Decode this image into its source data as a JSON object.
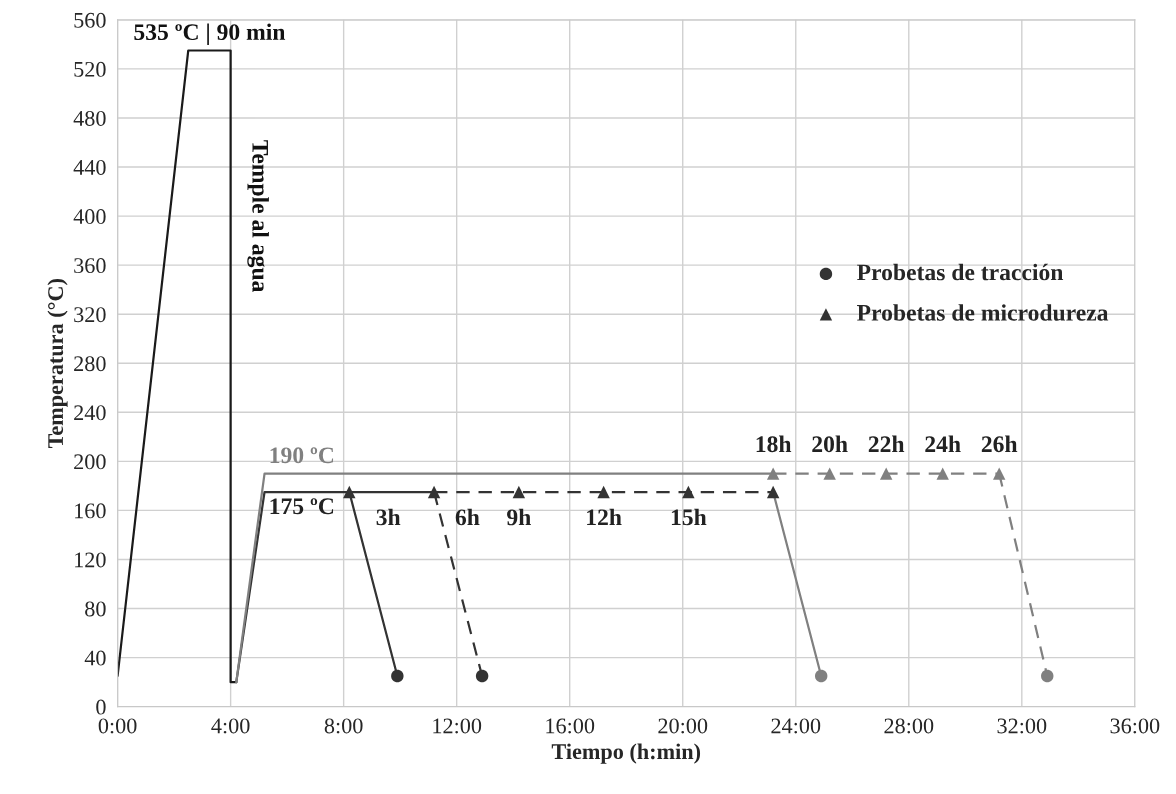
{
  "chart_data": {
    "type": "line",
    "xlabel": "Tiempo (h:min)",
    "ylabel": "Temperatura (°C)",
    "xlim": [
      0,
      36
    ],
    "ylim": [
      0,
      560
    ],
    "xticks": [
      {
        "value": 0,
        "label": "0:00"
      },
      {
        "value": 4,
        "label": "4:00"
      },
      {
        "value": 8,
        "label": "8:00"
      },
      {
        "value": 12,
        "label": "12:00"
      },
      {
        "value": 16,
        "label": "16:00"
      },
      {
        "value": 20,
        "label": "20:00"
      },
      {
        "value": 24,
        "label": "24:00"
      },
      {
        "value": 28,
        "label": "28:00"
      },
      {
        "value": 32,
        "label": "32:00"
      },
      {
        "value": 36,
        "label": "36:00"
      }
    ],
    "yticks": [
      0,
      40,
      80,
      120,
      160,
      200,
      240,
      280,
      320,
      360,
      400,
      440,
      480,
      520,
      560
    ],
    "grid": true,
    "legend": "right",
    "series": [
      {
        "color": "#1a1a1a",
        "line_style": "solid",
        "marker": "none",
        "x": [
          0,
          2.5,
          4.0,
          4.0,
          4.2
        ],
        "values": [
          25,
          535,
          535,
          20,
          20
        ]
      },
      {
        "color": "#333333",
        "line_style": "solid",
        "marker": "none",
        "x": [
          4.2,
          5.2,
          11.2
        ],
        "values": [
          20,
          175,
          175
        ]
      },
      {
        "color": "#333333",
        "line_style": "dashed",
        "marker": "none",
        "x": [
          11.2,
          23.2
        ],
        "values": [
          175,
          175
        ]
      },
      {
        "color": "#808080",
        "line_style": "solid",
        "marker": "none",
        "x": [
          4.2,
          5.2,
          23.2
        ],
        "values": [
          20,
          190,
          190
        ]
      },
      {
        "color": "#808080",
        "line_style": "dashed",
        "marker": "none",
        "x": [
          23.2,
          31.2
        ],
        "values": [
          190,
          190
        ]
      },
      {
        "color": "#333333",
        "line_style": "solid",
        "marker": "none",
        "x": [
          8.2,
          9.9
        ],
        "values": [
          175,
          25
        ]
      },
      {
        "color": "#333333",
        "line_style": "dashed",
        "marker": "none",
        "x": [
          11.2,
          12.9
        ],
        "values": [
          175,
          25
        ]
      },
      {
        "color": "#808080",
        "line_style": "solid",
        "marker": "none",
        "x": [
          23.2,
          24.9
        ],
        "values": [
          175,
          25
        ]
      },
      {
        "color": "#808080",
        "line_style": "dashed",
        "marker": "none",
        "x": [
          31.2,
          32.9
        ],
        "values": [
          190,
          25
        ]
      },
      {
        "type": "scatter",
        "name": "Probetas de tracción",
        "marker": "circle",
        "x": [
          9.9,
          12.9,
          24.9,
          32.9
        ],
        "values": [
          25,
          25,
          25,
          25
        ],
        "colors": [
          "#333333",
          "#333333",
          "#808080",
          "#808080"
        ]
      },
      {
        "type": "scatter",
        "name": "Probetas de microdureza",
        "marker": "triangle",
        "x": [
          8.2,
          11.2,
          14.2,
          17.2,
          20.2,
          23.2,
          23.2,
          25.2,
          27.2,
          29.2,
          31.2
        ],
        "values": [
          175,
          175,
          175,
          175,
          175,
          175,
          190,
          190,
          190,
          190,
          190
        ],
        "colors": [
          "#333333",
          "#333333",
          "#333333",
          "#333333",
          "#333333",
          "#333333",
          "#808080",
          "#808080",
          "#808080",
          "#808080",
          "#808080"
        ]
      }
    ],
    "annotations": [
      {
        "text": "535 ºC | 90 min",
        "x": 3.25,
        "y": 535
      },
      {
        "text": "Temple al agua",
        "x": 4.0,
        "y": 400
      },
      {
        "text": "190 ºC",
        "x": 5.2,
        "y": 190
      },
      {
        "text": "175 ºC",
        "x": 5.2,
        "y": 175
      },
      {
        "text": "3h",
        "x": 8.2,
        "y": 175
      },
      {
        "text": "6h",
        "x": 11.2,
        "y": 175
      },
      {
        "text": "9h",
        "x": 14.2,
        "y": 175
      },
      {
        "text": "12h",
        "x": 17.2,
        "y": 175
      },
      {
        "text": "15h",
        "x": 20.2,
        "y": 175
      },
      {
        "text": "18h",
        "x": 23.2,
        "y": 190
      },
      {
        "text": "20h",
        "x": 25.2,
        "y": 190
      },
      {
        "text": "22h",
        "x": 27.2,
        "y": 190
      },
      {
        "text": "24h",
        "x": 29.2,
        "y": 190
      },
      {
        "text": "26h",
        "x": 31.2,
        "y": 190
      }
    ]
  }
}
